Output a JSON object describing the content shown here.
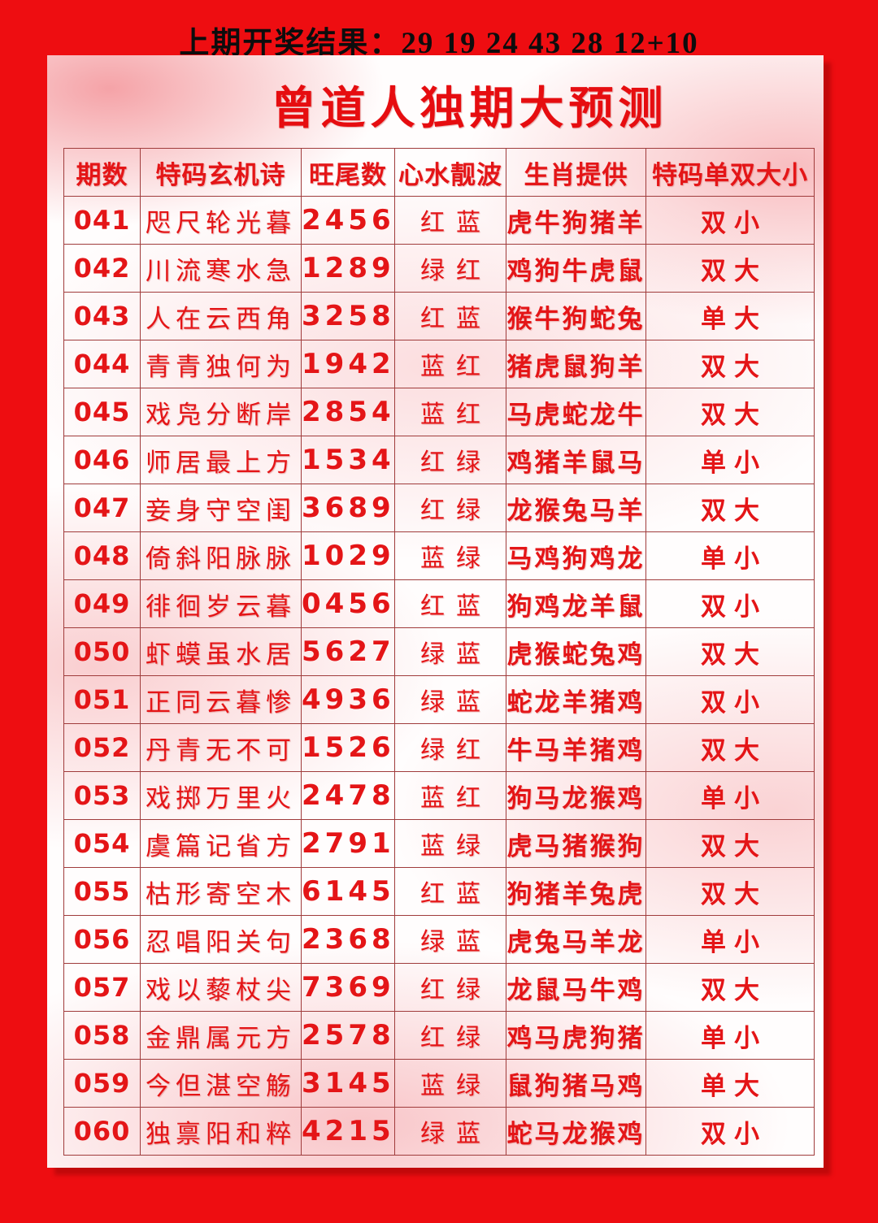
{
  "header": {
    "last_result": "上期开奖结果：29 19 24 43 28 12+10"
  },
  "title": "曾道人独期大预测",
  "colors": {
    "background_red": "#ee0d11",
    "text_red": "#e41517",
    "table_border": "#a03c3c",
    "top_text_black": "#0d0d0d",
    "card_pink": "#f6a8ac"
  },
  "table": {
    "headers": [
      "期数",
      "特码玄机诗",
      "旺尾数",
      "心水靓波",
      "生肖提供",
      "特码单双大小"
    ],
    "rows": [
      {
        "period": "041",
        "poem": "咫尺轮光暮",
        "tail": "2456",
        "wave": "红蓝",
        "zodiac": "虎牛狗猪羊",
        "size_parity": "双小"
      },
      {
        "period": "042",
        "poem": "川流寒水急",
        "tail": "1289",
        "wave": "绿红",
        "zodiac": "鸡狗牛虎鼠",
        "size_parity": "双大"
      },
      {
        "period": "043",
        "poem": "人在云西角",
        "tail": "3258",
        "wave": "红蓝",
        "zodiac": "猴牛狗蛇兔",
        "size_parity": "单大"
      },
      {
        "period": "044",
        "poem": "青青独何为",
        "tail": "1942",
        "wave": "蓝红",
        "zodiac": "猪虎鼠狗羊",
        "size_parity": "双大"
      },
      {
        "period": "045",
        "poem": "戏凫分断岸",
        "tail": "2854",
        "wave": "蓝红",
        "zodiac": "马虎蛇龙牛",
        "size_parity": "双大"
      },
      {
        "period": "046",
        "poem": "师居最上方",
        "tail": "1534",
        "wave": "红绿",
        "zodiac": "鸡猪羊鼠马",
        "size_parity": "单小"
      },
      {
        "period": "047",
        "poem": "妾身守空闺",
        "tail": "3689",
        "wave": "红绿",
        "zodiac": "龙猴兔马羊",
        "size_parity": "双大"
      },
      {
        "period": "048",
        "poem": "倚斜阳脉脉",
        "tail": "1029",
        "wave": "蓝绿",
        "zodiac": "马鸡狗鸡龙",
        "size_parity": "单小"
      },
      {
        "period": "049",
        "poem": "徘徊岁云暮",
        "tail": "0456",
        "wave": "红蓝",
        "zodiac": "狗鸡龙羊鼠",
        "size_parity": "双小"
      },
      {
        "period": "050",
        "poem": "虾蟆虽水居",
        "tail": "5627",
        "wave": "绿蓝",
        "zodiac": "虎猴蛇兔鸡",
        "size_parity": "双大"
      },
      {
        "period": "051",
        "poem": "正同云暮惨",
        "tail": "4936",
        "wave": "绿蓝",
        "zodiac": "蛇龙羊猪鸡",
        "size_parity": "双小"
      },
      {
        "period": "052",
        "poem": "丹青无不可",
        "tail": "1526",
        "wave": "绿红",
        "zodiac": "牛马羊猪鸡",
        "size_parity": "双大"
      },
      {
        "period": "053",
        "poem": "戏掷万里火",
        "tail": "2478",
        "wave": "蓝红",
        "zodiac": "狗马龙猴鸡",
        "size_parity": "单小"
      },
      {
        "period": "054",
        "poem": "虞篇记省方",
        "tail": "2791",
        "wave": "蓝绿",
        "zodiac": "虎马猪猴狗",
        "size_parity": "双大"
      },
      {
        "period": "055",
        "poem": "枯形寄空木",
        "tail": "6145",
        "wave": "红蓝",
        "zodiac": "狗猪羊兔虎",
        "size_parity": "双大"
      },
      {
        "period": "056",
        "poem": "忍唱阳关句",
        "tail": "2368",
        "wave": "绿蓝",
        "zodiac": "虎兔马羊龙",
        "size_parity": "单小"
      },
      {
        "period": "057",
        "poem": "戏以藜杖尖",
        "tail": "7369",
        "wave": "红绿",
        "zodiac": "龙鼠马牛鸡",
        "size_parity": "双大"
      },
      {
        "period": "058",
        "poem": "金鼎属元方",
        "tail": "2578",
        "wave": "红绿",
        "zodiac": "鸡马虎狗猪",
        "size_parity": "单小"
      },
      {
        "period": "059",
        "poem": "今但湛空觞",
        "tail": "3145",
        "wave": "蓝绿",
        "zodiac": "鼠狗猪马鸡",
        "size_parity": "单大"
      },
      {
        "period": "060",
        "poem": "独禀阳和粹",
        "tail": "4215",
        "wave": "绿蓝",
        "zodiac": "蛇马龙猴鸡",
        "size_parity": "双小"
      }
    ]
  }
}
